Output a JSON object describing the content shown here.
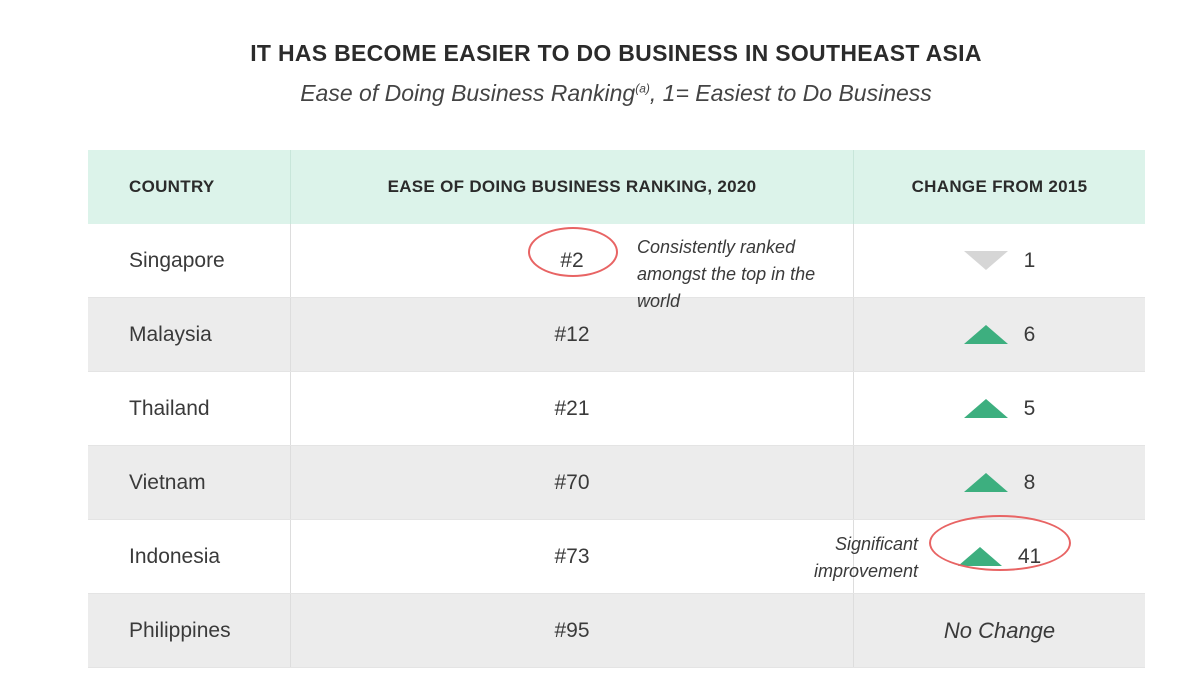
{
  "title": "IT HAS BECOME EASIER TO DO BUSINESS IN SOUTHEAST ASIA",
  "subtitle": {
    "text_before": "Ease of Doing Business Ranking",
    "superscript": "(a)",
    "text_after": ", 1= Easiest to Do Business"
  },
  "table": {
    "headers": [
      "COUNTRY",
      "EASE OF DOING BUSINESS RANKING, 2020",
      "CHANGE FROM 2015"
    ],
    "rows": [
      {
        "country": "Singapore",
        "rank": "#2",
        "change_direction": "down",
        "change": "1"
      },
      {
        "country": "Malaysia",
        "rank": "#12",
        "change_direction": "up",
        "change": "6"
      },
      {
        "country": "Thailand",
        "rank": "#21",
        "change_direction": "up",
        "change": "5"
      },
      {
        "country": "Vietnam",
        "rank": "#70",
        "change_direction": "up",
        "change": "8"
      },
      {
        "country": "Indonesia",
        "rank": "#73",
        "change_direction": "up",
        "change": "41"
      },
      {
        "country": "Philippines",
        "rank": "#95",
        "change_direction": "none",
        "change": "No Change"
      }
    ]
  },
  "annotations": {
    "singapore_note": "Consistently ranked amongst the top in the world",
    "indonesia_note_line1": "Significant",
    "indonesia_note_line2": "improvement"
  },
  "colors": {
    "header_bg": "#dcf3ea",
    "alt_row_bg": "#ececec",
    "up_triangle": "#3daf7f",
    "down_triangle": "#d6d6d6",
    "highlight_ellipse": "#e86464"
  }
}
